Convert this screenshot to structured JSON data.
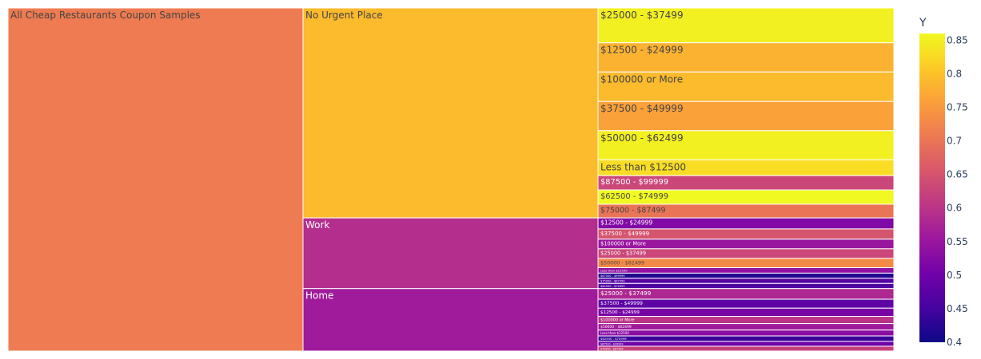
{
  "chart_data": {
    "type": "icicle",
    "colorbar": {
      "title": "Y",
      "min": 0.4,
      "max": 0.86,
      "ticks": [
        "0.85",
        "0.8",
        "0.75",
        "0.7",
        "0.65",
        "0.6",
        "0.55",
        "0.5",
        "0.45",
        "0.4"
      ],
      "tick_values": [
        0.85,
        0.8,
        0.75,
        0.7,
        0.65,
        0.6,
        0.55,
        0.5,
        0.45,
        0.4
      ],
      "colorscale": [
        "#0d0887",
        "#46039f",
        "#7201a8",
        "#9c179e",
        "#bd3786",
        "#d8576b",
        "#ed7953",
        "#fb9f3a",
        "#fdca26",
        "#f0f921"
      ]
    },
    "root": {
      "label": "All Cheap Restaurants Coupon Samples",
      "value": 0.71
    },
    "levels": [
      {
        "label": "No Urgent Place",
        "value": 0.79,
        "weight": 0.612,
        "children": [
          {
            "label": "$25000 - $37499",
            "value": 0.85,
            "weight": 0.117
          },
          {
            "label": "$12500 - $24999",
            "value": 0.78,
            "weight": 0.098
          },
          {
            "label": "$100000 or More",
            "value": 0.79,
            "weight": 0.099
          },
          {
            "label": "$37500 - $49999",
            "value": 0.76,
            "weight": 0.098
          },
          {
            "label": "$50000 - $62499",
            "value": 0.85,
            "weight": 0.098
          },
          {
            "label": "Less than $12500",
            "value": 0.83,
            "weight": 0.053
          },
          {
            "label": "$87500 - $99999",
            "value": 0.63,
            "weight": 0.048
          },
          {
            "label": "$62500 - $74999",
            "value": 0.86,
            "weight": 0.048
          },
          {
            "label": "$75000 - $87499",
            "value": 0.7,
            "weight": 0.046
          }
        ]
      },
      {
        "label": "Work",
        "value": 0.59,
        "weight": 0.206,
        "children": [
          {
            "label": "$12500 - $24999",
            "value": 0.52,
            "weight": 0.032
          },
          {
            "label": "$37500 - $49999",
            "value": 0.65,
            "weight": 0.03
          },
          {
            "label": "$100000 or More",
            "value": 0.55,
            "weight": 0.028
          },
          {
            "label": "$25000 - $37499",
            "value": 0.63,
            "weight": 0.028
          },
          {
            "label": "$50000 - $62499",
            "value": 0.73,
            "weight": 0.027
          },
          {
            "label": "Less than $12500",
            "value": 0.54,
            "weight": 0.016
          },
          {
            "label": "$87500 - $99999",
            "value": 0.42,
            "weight": 0.015
          },
          {
            "label": "$75000 - $87499",
            "value": 0.47,
            "weight": 0.015
          },
          {
            "label": "$62500 - $74999",
            "value": 0.46,
            "weight": 0.015
          }
        ]
      },
      {
        "label": "Home",
        "value": 0.56,
        "weight": 0.182,
        "children": [
          {
            "label": "$25000 - $37499",
            "value": 0.58,
            "weight": 0.031
          },
          {
            "label": "$37500 - $49999",
            "value": 0.48,
            "weight": 0.026
          },
          {
            "label": "$12500 - $24999",
            "value": 0.51,
            "weight": 0.024
          },
          {
            "label": "$100000 or More",
            "value": 0.6,
            "weight": 0.021
          },
          {
            "label": "$50000 - $62499",
            "value": 0.56,
            "weight": 0.019
          },
          {
            "label": "Less than $12500",
            "value": 0.53,
            "weight": 0.017
          },
          {
            "label": "$62500 - $74999",
            "value": 0.44,
            "weight": 0.016
          },
          {
            "label": "$87500 - $99999",
            "value": 0.5,
            "weight": 0.014
          },
          {
            "label": "$75000 - $87499",
            "value": 0.62,
            "weight": 0.014
          }
        ]
      }
    ]
  }
}
